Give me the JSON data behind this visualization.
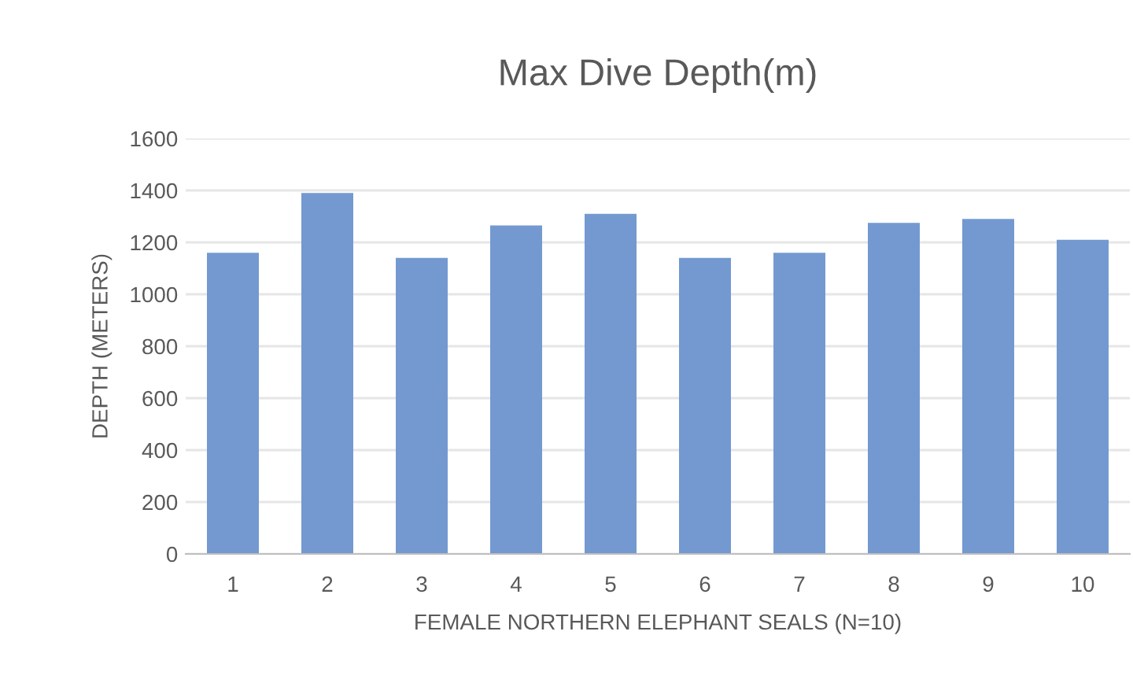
{
  "chart_data": {
    "type": "bar",
    "title": "Max Dive Depth(m)",
    "xlabel": "FEMALE NORTHERN ELEPHANT SEALS (N=10)",
    "ylabel": "DEPTH (METERS)",
    "categories": [
      "1",
      "2",
      "3",
      "4",
      "5",
      "6",
      "7",
      "8",
      "9",
      "10"
    ],
    "values": [
      1160,
      1390,
      1140,
      1265,
      1310,
      1140,
      1160,
      1275,
      1290,
      1210
    ],
    "color": "#7399d0",
    "ylim": [
      0,
      1600
    ],
    "yticks": [
      0,
      200,
      400,
      600,
      800,
      1000,
      1200,
      1400,
      1600
    ],
    "grid": "y"
  }
}
